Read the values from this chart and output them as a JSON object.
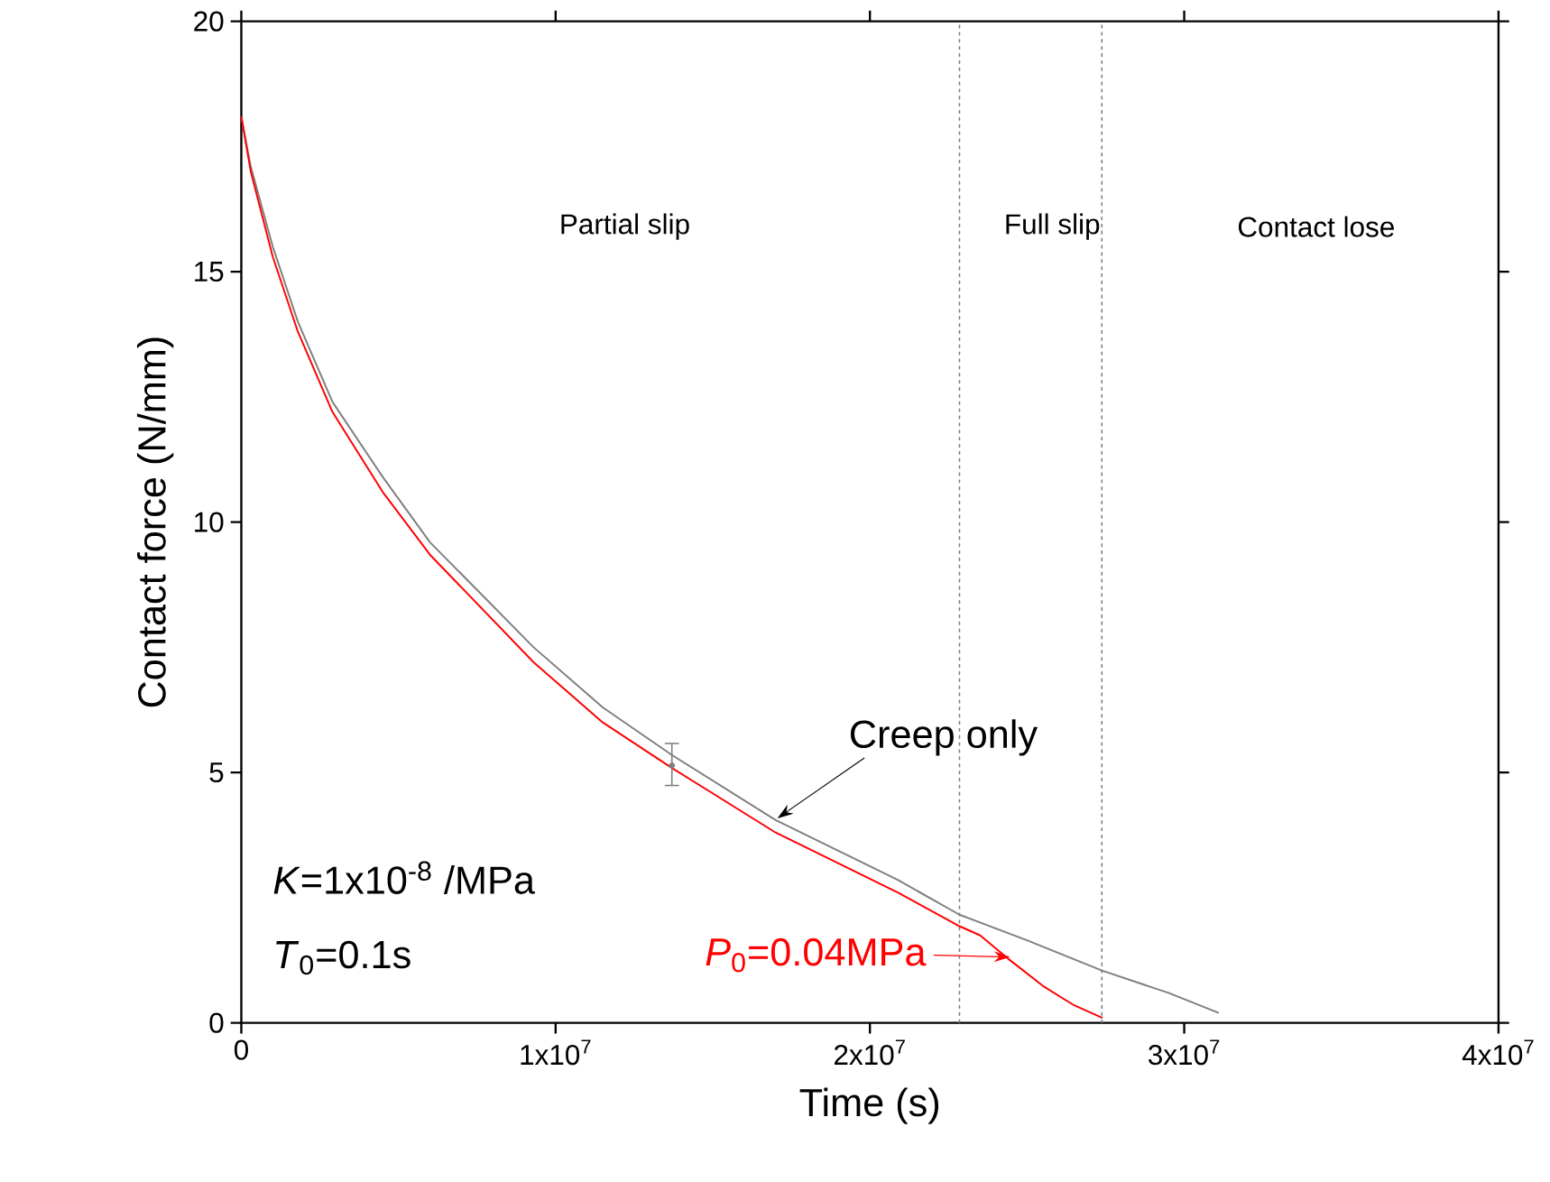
{
  "chart_data": {
    "type": "line",
    "xlabel": "Time (s)",
    "ylabel": "Contact force (N/mm)",
    "xlim": [
      0,
      40000000
    ],
    "ylim": [
      0,
      20
    ],
    "xticks": [
      0,
      {
        "value": 10000000,
        "label": "1x10$^{7}$"
      },
      {
        "value": 20000000,
        "label": "2x10$^{7}$"
      },
      {
        "value": 30000000,
        "label": "3x10$^{7}$"
      },
      {
        "value": 40000000,
        "label": "4x10$^{7}$"
      }
    ],
    "yticks": [
      0,
      5,
      10,
      15,
      20
    ],
    "series": [
      {
        "name": "Creep only",
        "color": "#7f7f7f",
        "x": [
          0,
          300000,
          1000000,
          1800000,
          2900000,
          4500000,
          6000000,
          9300000,
          11500000,
          13700000,
          17000000,
          20900000,
          22850000,
          25000000,
          27400000,
          29500000,
          31100000
        ],
        "values": [
          18.1,
          17.1,
          15.5,
          14.0,
          12.4,
          10.9,
          9.6,
          7.5,
          6.3,
          5.35,
          4.05,
          2.85,
          2.16,
          1.65,
          1.04,
          0.6,
          0.2
        ]
      },
      {
        "name": "*P*$_{0}$=0.04MPa",
        "color": "#ff0000",
        "x": [
          0,
          300000,
          1000000,
          1800000,
          2900000,
          4500000,
          6000000,
          9300000,
          11500000,
          13700000,
          17000000,
          20900000,
          22850000,
          23500000,
          24400000,
          25500000,
          26500000,
          27400000
        ],
        "values": [
          18.1,
          17.0,
          15.3,
          13.8,
          12.2,
          10.6,
          9.35,
          7.2,
          6.0,
          5.09,
          3.8,
          2.6,
          1.93,
          1.75,
          1.28,
          0.74,
          0.35,
          0.1
        ]
      },
      {
        "type": "scatter",
        "color": "#7f7f7f",
        "x": [
          13700000
        ],
        "values": [
          5.14
        ],
        "errors": [
          [
            4.74,
            5.58
          ]
        ]
      }
    ],
    "ref_lines": [
      {
        "axis": "x",
        "value": 22850000,
        "line_style": "dotted",
        "color": "#7f7f7f"
      },
      {
        "axis": "x",
        "value": 27380000,
        "line_style": "dotted",
        "color": "#7f7f7f"
      }
    ],
    "annotations": [
      "Partial slip",
      "Full slip",
      "Contact lose",
      "*K*=1x10$^{-8}$ /MPa",
      "*T*$_{0}$=0.1s"
    ]
  }
}
